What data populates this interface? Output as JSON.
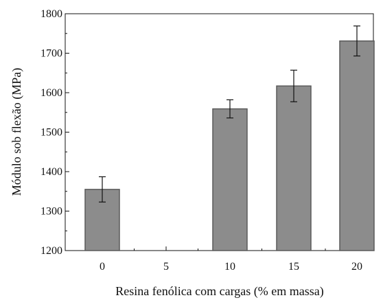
{
  "chart_data": {
    "type": "bar",
    "title": "",
    "xlabel": "Resina fenólica com cargas (% em massa)",
    "ylabel": "Módulo sob flexão (MPa)",
    "categories": [
      "0",
      "5",
      "10",
      "15",
      "20"
    ],
    "values": [
      1355,
      null,
      1559,
      1617,
      1731
    ],
    "errors": [
      32,
      null,
      23,
      40,
      38
    ],
    "ylim": [
      1200,
      1800
    ],
    "yticks": [
      1200,
      1300,
      1400,
      1500,
      1600,
      1700,
      1800
    ],
    "ytick_labels": [
      "1200",
      "1300",
      "1400",
      "1500",
      "1600",
      "1700",
      "1800"
    ],
    "grid": false,
    "bar_color": "#8c8c8c",
    "bar_edge_color": "#5a5a5a"
  }
}
